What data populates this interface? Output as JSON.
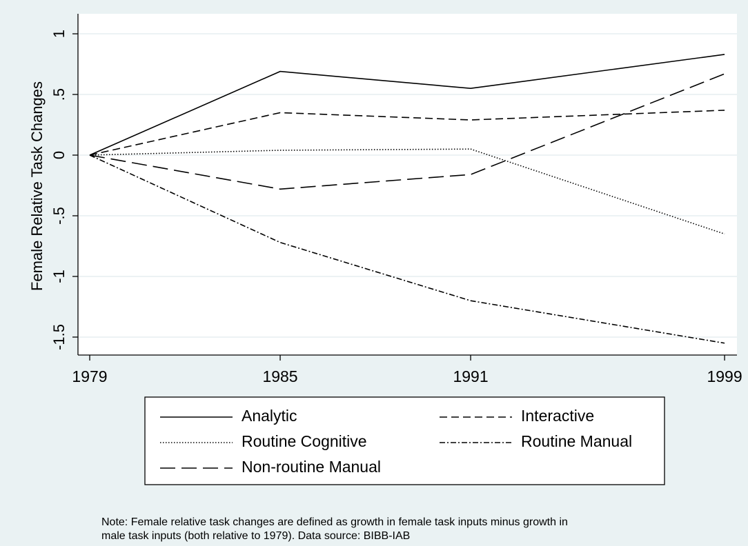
{
  "chart_data": {
    "type": "line",
    "y_label": "Female Relative Task Changes",
    "x": [
      1979,
      1985,
      1991,
      1999
    ],
    "xlim": [
      1978.63,
      1999.39
    ],
    "xticks": [
      1979,
      1985,
      1991,
      1999
    ],
    "ylim": [
      -1.648,
      1.165
    ],
    "yticks": [
      1,
      {
        "value": 0.5,
        "label": ".5"
      },
      0,
      {
        "value": -0.5,
        "label": "-.5"
      },
      -1,
      -1.5
    ],
    "grid": true,
    "series": [
      {
        "name": "Analytic",
        "color": "#000000",
        "dash": "none",
        "values": [
          0,
          0.69,
          0.55,
          0.83
        ]
      },
      {
        "name": "Interactive",
        "color": "#000000",
        "dash": "11,6",
        "values": [
          0,
          0.35,
          0.29,
          0.37
        ]
      },
      {
        "name": "Routine Cognitive",
        "color": "#000000",
        "dash": "1.5,2.5",
        "values": [
          0,
          0.04,
          0.05,
          -0.65
        ]
      },
      {
        "name": "Routine Manual",
        "color": "#000000",
        "dash": "8,3,2,3",
        "values": [
          0,
          -0.72,
          -1.2,
          -1.55
        ]
      },
      {
        "name": "Non-routine Manual",
        "color": "#000000",
        "dash": "22,9",
        "values": [
          0,
          -0.28,
          -0.16,
          0.67
        ]
      }
    ],
    "note": [
      "Note: Female relative task changes are defined as growth in female task inputs minus growth in",
      "male task inputs (both relative to 1979). Data source: BIBB-IAB"
    ]
  }
}
